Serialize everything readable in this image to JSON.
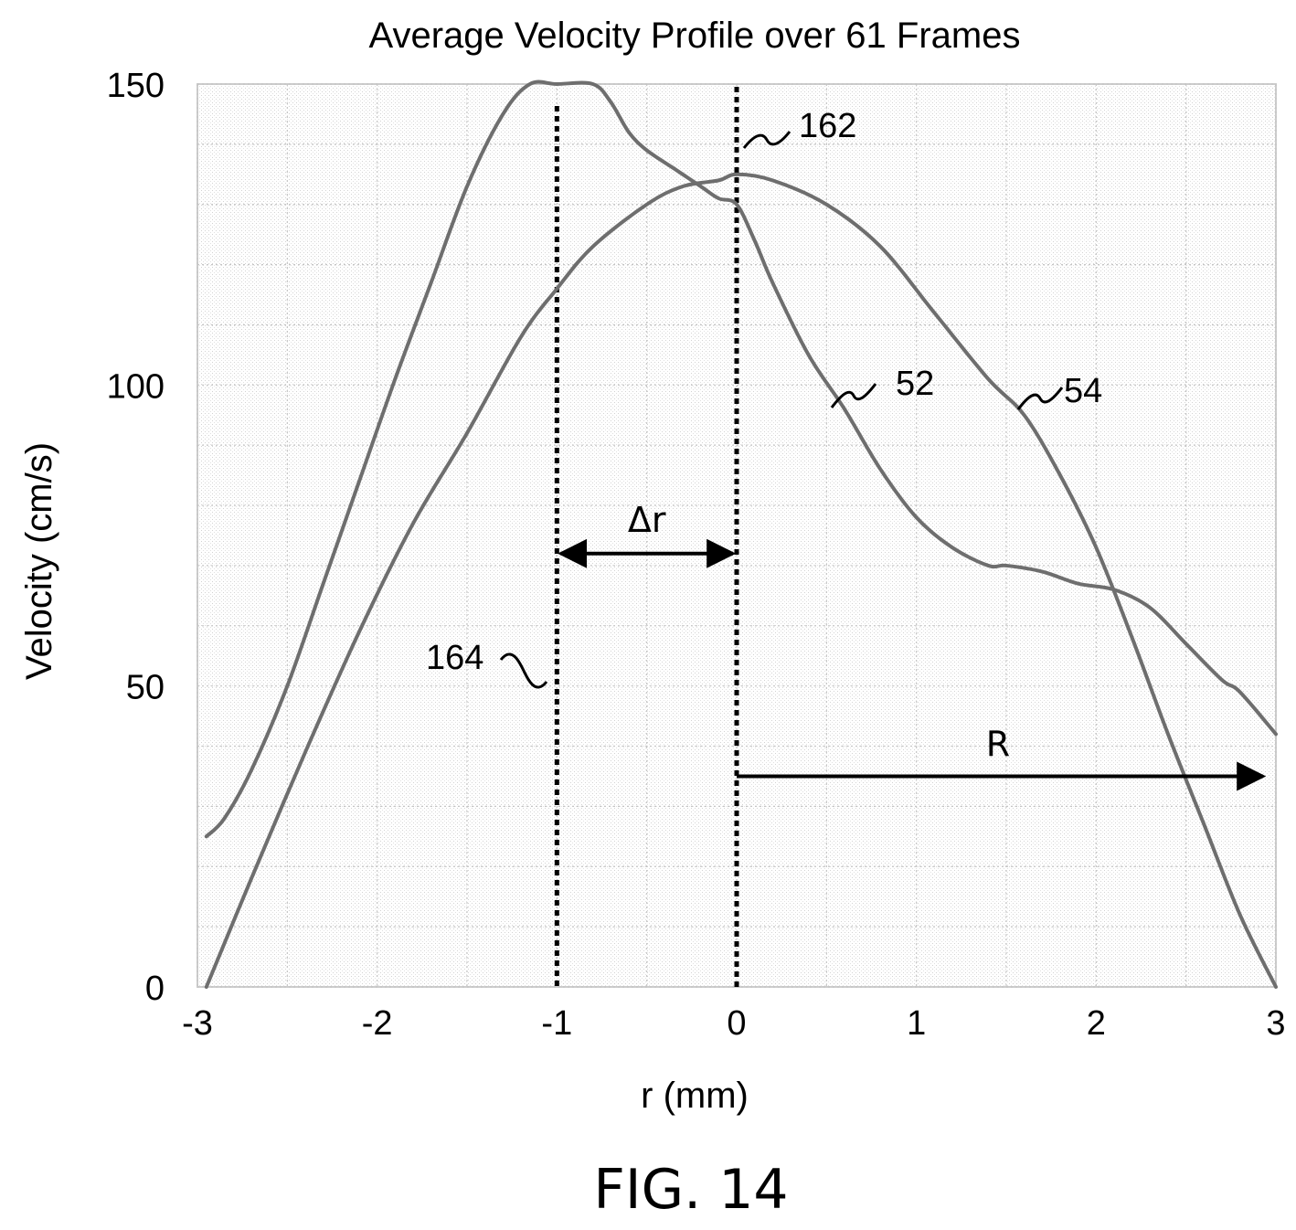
{
  "chart_data": {
    "type": "line",
    "title": "Average Velocity Profile over 61 Frames",
    "xlabel": "r (mm)",
    "ylabel": "Velocity (cm/s)",
    "xlim": [
      -3,
      3
    ],
    "ylim": [
      0,
      150
    ],
    "x_ticks": [
      "-3",
      "-2",
      "-1",
      "0",
      "1",
      "2",
      "3"
    ],
    "y_ticks": [
      "0",
      "50",
      "100",
      "150"
    ],
    "grid": true,
    "series": [
      {
        "name": "52",
        "x": [
          -2.95,
          -2.85,
          -2.7,
          -2.5,
          -2.3,
          -2.1,
          -1.9,
          -1.7,
          -1.5,
          -1.3,
          -1.15,
          -1.0,
          -0.8,
          -0.7,
          -0.6,
          -0.5,
          -0.35,
          -0.2,
          -0.1,
          0.0,
          0.1,
          0.2,
          0.4,
          0.6,
          0.8,
          1.0,
          1.2,
          1.4,
          1.5,
          1.7,
          1.9,
          2.1,
          2.3,
          2.5,
          2.7,
          2.8,
          3.0
        ],
        "y": [
          25,
          28,
          36,
          50,
          67,
          84,
          101,
          117,
          133,
          145,
          150,
          150,
          150,
          147,
          142,
          139,
          136,
          133,
          131,
          130,
          124,
          117,
          105,
          96,
          86,
          78,
          73,
          70,
          70,
          69,
          67,
          66,
          63,
          57,
          51,
          49,
          42
        ]
      },
      {
        "name": "54",
        "x": [
          -2.95,
          -2.7,
          -2.4,
          -2.1,
          -1.8,
          -1.5,
          -1.2,
          -1.0,
          -0.8,
          -0.5,
          -0.3,
          -0.1,
          0.0,
          0.2,
          0.5,
          0.8,
          1.1,
          1.4,
          1.6,
          1.8,
          2.0,
          2.2,
          2.4,
          2.6,
          2.8,
          3.0
        ],
        "y": [
          0,
          18,
          39,
          59,
          77,
          92,
          108,
          116,
          123,
          130,
          133,
          134,
          135,
          134,
          130,
          123,
          112,
          101,
          95,
          85,
          73,
          58,
          42,
          27,
          12,
          0
        ]
      }
    ],
    "reference_lines": [
      {
        "label": "164",
        "x": -1
      },
      {
        "label": "162",
        "x": 0
      }
    ],
    "annotations": [
      {
        "label": "Δr",
        "from_x": -1,
        "to_x": 0,
        "y": 72
      },
      {
        "label": "R",
        "from_x": 0,
        "to_x": 3,
        "y": 35
      }
    ]
  },
  "figure_label": "FIG. 14"
}
